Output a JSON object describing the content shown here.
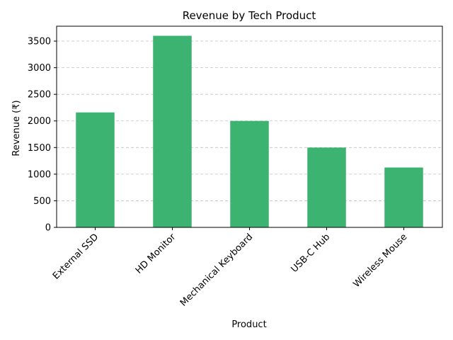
{
  "chart_data": {
    "type": "bar",
    "title": "Revenue by Tech Product",
    "xlabel": "Product",
    "ylabel": "Revenue (₹)",
    "categories": [
      "External SSD",
      "HD Monitor",
      "Mechanical Keyboard",
      "USB-C Hub",
      "Wireless Mouse"
    ],
    "values": [
      2160,
      3600,
      2000,
      1500,
      1125
    ],
    "ylim": [
      0,
      3780
    ],
    "yticks": [
      0,
      500,
      1000,
      1500,
      2000,
      2500,
      3000,
      3500
    ],
    "grid": "y-dashed",
    "bar_color": "#3cb371",
    "grid_color": "#c0c0c0"
  }
}
